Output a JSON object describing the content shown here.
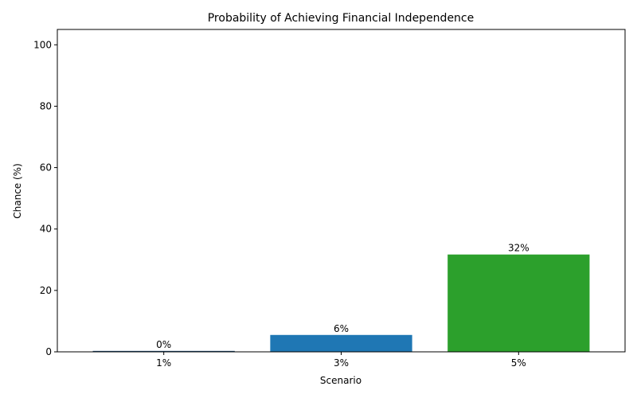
{
  "chart_data": {
    "type": "bar",
    "title": "Probability of Achieving Financial Independence",
    "xlabel": "Scenario",
    "ylabel": "Chance (%)",
    "categories": [
      "1%",
      "3%",
      "5%"
    ],
    "values": [
      0.3,
      5.5,
      31.7
    ],
    "data_labels": [
      "0%",
      "6%",
      "32%"
    ],
    "colors": [
      "#1f4e79",
      "#1f77b4",
      "#2ca02c"
    ],
    "ylim": [
      0,
      105
    ],
    "yticks": [
      0,
      20,
      40,
      60,
      80,
      100
    ],
    "grid": false,
    "legend": "none"
  }
}
